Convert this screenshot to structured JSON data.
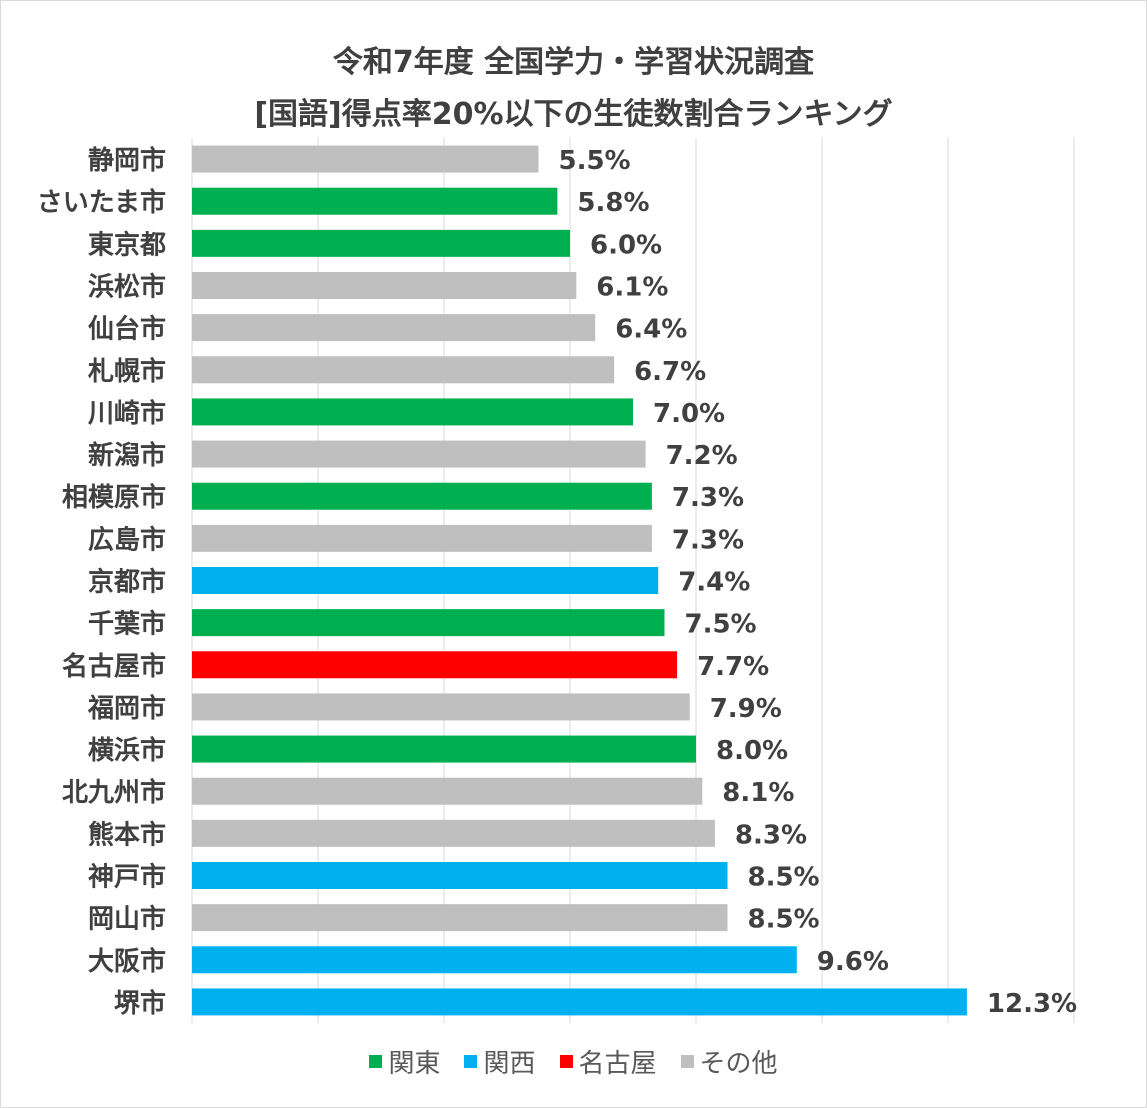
{
  "chart_data": {
    "type": "bar",
    "orientation": "horizontal",
    "title": [
      "令和7年度 全国学力・学習状況調査",
      "[国語]得点率20%以下の生徒数割合ランキング"
    ],
    "xlabel": "",
    "ylabel": "",
    "xlim": [
      0,
      14
    ],
    "grid_step": 2,
    "grid": true,
    "legend_position": "bottom",
    "categories": [
      "静岡市",
      "さいたま市",
      "東京都",
      "浜松市",
      "仙台市",
      "札幌市",
      "川崎市",
      "新潟市",
      "相模原市",
      "広島市",
      "京都市",
      "千葉市",
      "名古屋市",
      "福岡市",
      "横浜市",
      "北九州市",
      "熊本市",
      "神戸市",
      "岡山市",
      "大阪市",
      "堺市"
    ],
    "values": [
      5.5,
      5.8,
      6.0,
      6.1,
      6.4,
      6.7,
      7.0,
      7.2,
      7.3,
      7.3,
      7.4,
      7.5,
      7.7,
      7.9,
      8.0,
      8.1,
      8.3,
      8.5,
      8.5,
      9.6,
      12.3
    ],
    "labels": [
      "5.5%",
      "5.8%",
      "6.0%",
      "6.1%",
      "6.4%",
      "6.7%",
      "7.0%",
      "7.2%",
      "7.3%",
      "7.3%",
      "7.4%",
      "7.5%",
      "7.7%",
      "7.9%",
      "8.0%",
      "8.1%",
      "8.3%",
      "8.5%",
      "8.5%",
      "9.6%",
      "12.3%"
    ],
    "groups": [
      "その他",
      "関東",
      "関東",
      "その他",
      "その他",
      "その他",
      "関東",
      "その他",
      "関東",
      "その他",
      "関西",
      "関東",
      "名古屋",
      "その他",
      "関東",
      "その他",
      "その他",
      "関西",
      "その他",
      "関西",
      "関西"
    ],
    "legend": [
      {
        "name": "関東",
        "color": "#00B050"
      },
      {
        "name": "関西",
        "color": "#00B0F0"
      },
      {
        "name": "名古屋",
        "color": "#FF0000"
      },
      {
        "name": "その他",
        "color": "#BFBFBF"
      }
    ]
  }
}
